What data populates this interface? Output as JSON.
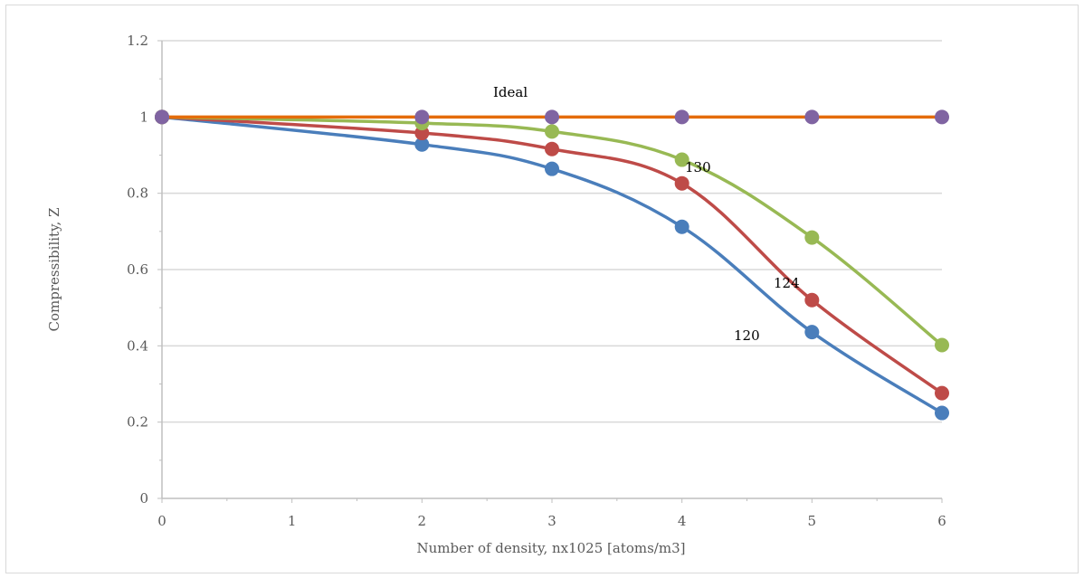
{
  "chart_data": {
    "type": "line",
    "xlabel": "Number of density, nx1025 [atoms/m3]",
    "ylabel": "Compressibility, Z",
    "x_ticks": [
      "0",
      "1",
      "2",
      "3",
      "4",
      "5",
      "6"
    ],
    "y_ticks": [
      "0",
      "0.2",
      "0.4",
      "0.6",
      "0.8",
      "1",
      "1.2"
    ],
    "xlim": [
      0,
      6
    ],
    "ylim": [
      0,
      1.2
    ],
    "grid": "horizontal",
    "legend": "none",
    "series": [
      {
        "name": "120",
        "color": "#4a7ebb",
        "x": [
          0,
          2,
          3,
          4,
          5,
          6
        ],
        "values": [
          1.0,
          0.928,
          0.864,
          0.712,
          0.436,
          0.224
        ]
      },
      {
        "name": "124",
        "color": "#be4b48",
        "x": [
          0,
          2,
          3,
          4,
          5,
          6
        ],
        "values": [
          1.0,
          0.958,
          0.916,
          0.826,
          0.52,
          0.276
        ]
      },
      {
        "name": "130",
        "color": "#98b954",
        "x": [
          0,
          2,
          3,
          4,
          5,
          6
        ],
        "values": [
          1.0,
          0.984,
          0.962,
          0.888,
          0.684,
          0.402
        ]
      },
      {
        "name": "Ideal",
        "color": "#e46c0a",
        "marker_color": "#8064a2",
        "x": [
          0,
          2,
          3,
          4,
          5,
          6
        ],
        "values": [
          1.0,
          1.0,
          1.0,
          1.0,
          1.0,
          1.0
        ]
      }
    ],
    "annotations": [
      {
        "text": "Ideal",
        "series": "Ideal"
      },
      {
        "text": "130",
        "series": "130"
      },
      {
        "text": "124",
        "series": "124"
      },
      {
        "text": "120",
        "series": "120"
      }
    ]
  }
}
